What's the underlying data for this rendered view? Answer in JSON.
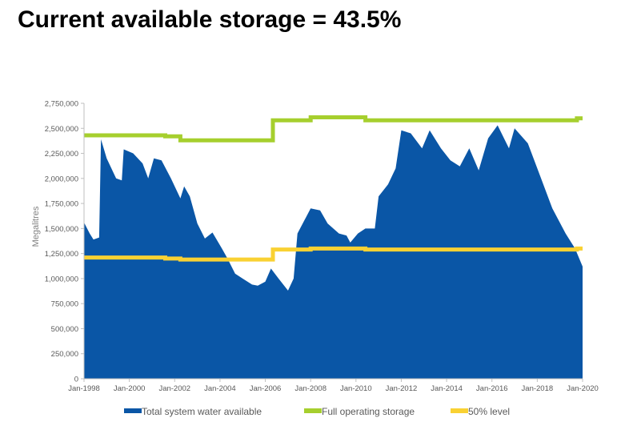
{
  "headline": "Current available storage = 43.5%",
  "chart_data": {
    "type": "area",
    "xlabel": "",
    "ylabel": "Megalitres",
    "x_range": [
      "1998-01",
      "2020-01"
    ],
    "ylim": [
      0,
      2750000
    ],
    "y_ticks": [
      0,
      250000,
      500000,
      750000,
      1000000,
      1250000,
      1500000,
      1750000,
      2000000,
      2250000,
      2500000,
      2750000
    ],
    "y_tick_labels": [
      "0",
      "250,000",
      "500,000",
      "750,000",
      "1,000,000",
      "1,250,000",
      "1,500,000",
      "1,750,000",
      "2,000,000",
      "2,250,000",
      "2,500,000",
      "2,750,000"
    ],
    "x_ticks": [
      "1998-01",
      "2000-01",
      "2002-01",
      "2004-01",
      "2006-01",
      "2008-01",
      "2010-01",
      "2012-01",
      "2014-01",
      "2016-01",
      "2018-01",
      "2020-01"
    ],
    "x_tick_labels": [
      "Jan-1998",
      "Jan-2000",
      "Jan-2002",
      "Jan-2004",
      "Jan-2006",
      "Jan-2008",
      "Jan-2010",
      "Jan-2012",
      "Jan-2014",
      "Jan-2016",
      "Jan-2018",
      "Jan-2020"
    ],
    "grid": false,
    "legend_position": "bottom",
    "colors": {
      "total": "#0a56a6",
      "full": "#a6cf2e",
      "half": "#f9d133"
    },
    "series": [
      {
        "name": "Total system water available",
        "kind": "area",
        "points": [
          [
            "1998-01",
            1560000
          ],
          [
            "1998-04",
            1450000
          ],
          [
            "1998-06",
            1390000
          ],
          [
            "1998-09",
            1410000
          ],
          [
            "1998-10",
            2390000
          ],
          [
            "1999-01",
            2200000
          ],
          [
            "1999-06",
            2000000
          ],
          [
            "1999-09",
            1980000
          ],
          [
            "1999-10",
            2290000
          ],
          [
            "2000-03",
            2250000
          ],
          [
            "2000-08",
            2150000
          ],
          [
            "2000-11",
            2000000
          ],
          [
            "2001-02",
            2200000
          ],
          [
            "2001-06",
            2180000
          ],
          [
            "2001-11",
            2000000
          ],
          [
            "2002-04",
            1800000
          ],
          [
            "2002-06",
            1920000
          ],
          [
            "2002-09",
            1820000
          ],
          [
            "2003-01",
            1550000
          ],
          [
            "2003-05",
            1400000
          ],
          [
            "2003-09",
            1460000
          ],
          [
            "2004-02",
            1300000
          ],
          [
            "2004-05",
            1200000
          ],
          [
            "2004-09",
            1050000
          ],
          [
            "2005-01",
            1000000
          ],
          [
            "2005-06",
            940000
          ],
          [
            "2005-09",
            930000
          ],
          [
            "2006-01",
            970000
          ],
          [
            "2006-04",
            1100000
          ],
          [
            "2006-08",
            1000000
          ],
          [
            "2007-01",
            880000
          ],
          [
            "2007-04",
            1000000
          ],
          [
            "2007-06",
            1450000
          ],
          [
            "2008-01",
            1700000
          ],
          [
            "2008-06",
            1680000
          ],
          [
            "2008-10",
            1550000
          ],
          [
            "2009-04",
            1450000
          ],
          [
            "2009-08",
            1430000
          ],
          [
            "2009-10",
            1360000
          ],
          [
            "2010-02",
            1450000
          ],
          [
            "2010-06",
            1500000
          ],
          [
            "2010-11",
            1500000
          ],
          [
            "2011-01",
            1820000
          ],
          [
            "2011-06",
            1940000
          ],
          [
            "2011-10",
            2100000
          ],
          [
            "2012-01",
            2480000
          ],
          [
            "2012-06",
            2450000
          ],
          [
            "2012-12",
            2300000
          ],
          [
            "2013-04",
            2480000
          ],
          [
            "2013-10",
            2300000
          ],
          [
            "2014-03",
            2180000
          ],
          [
            "2014-08",
            2120000
          ],
          [
            "2015-01",
            2300000
          ],
          [
            "2015-06",
            2080000
          ],
          [
            "2015-11",
            2400000
          ],
          [
            "2016-04",
            2530000
          ],
          [
            "2016-10",
            2300000
          ],
          [
            "2017-01",
            2500000
          ],
          [
            "2017-08",
            2350000
          ],
          [
            "2018-03",
            2000000
          ],
          [
            "2018-09",
            1700000
          ],
          [
            "2019-04",
            1450000
          ],
          [
            "2019-09",
            1300000
          ],
          [
            "2020-01",
            1120000
          ]
        ]
      },
      {
        "name": "Full operating storage",
        "kind": "line",
        "points": [
          [
            "1998-01",
            2430000
          ],
          [
            "2001-08",
            2430000
          ],
          [
            "2001-08",
            2420000
          ],
          [
            "2002-04",
            2420000
          ],
          [
            "2002-04",
            2380000
          ],
          [
            "2006-05",
            2380000
          ],
          [
            "2006-05",
            2580000
          ],
          [
            "2008-01",
            2580000
          ],
          [
            "2008-01",
            2610000
          ],
          [
            "2010-06",
            2610000
          ],
          [
            "2010-06",
            2580000
          ],
          [
            "2019-10",
            2580000
          ],
          [
            "2019-10",
            2600000
          ],
          [
            "2020-01",
            2600000
          ]
        ]
      },
      {
        "name": "50% level",
        "kind": "line",
        "points": [
          [
            "1998-01",
            1210000
          ],
          [
            "2001-08",
            1210000
          ],
          [
            "2001-08",
            1200000
          ],
          [
            "2002-04",
            1200000
          ],
          [
            "2002-04",
            1190000
          ],
          [
            "2006-05",
            1190000
          ],
          [
            "2006-05",
            1290000
          ],
          [
            "2008-01",
            1290000
          ],
          [
            "2008-01",
            1300000
          ],
          [
            "2010-06",
            1300000
          ],
          [
            "2010-06",
            1290000
          ],
          [
            "2019-10",
            1290000
          ],
          [
            "2019-10",
            1300000
          ],
          [
            "2020-01",
            1300000
          ]
        ]
      }
    ]
  }
}
